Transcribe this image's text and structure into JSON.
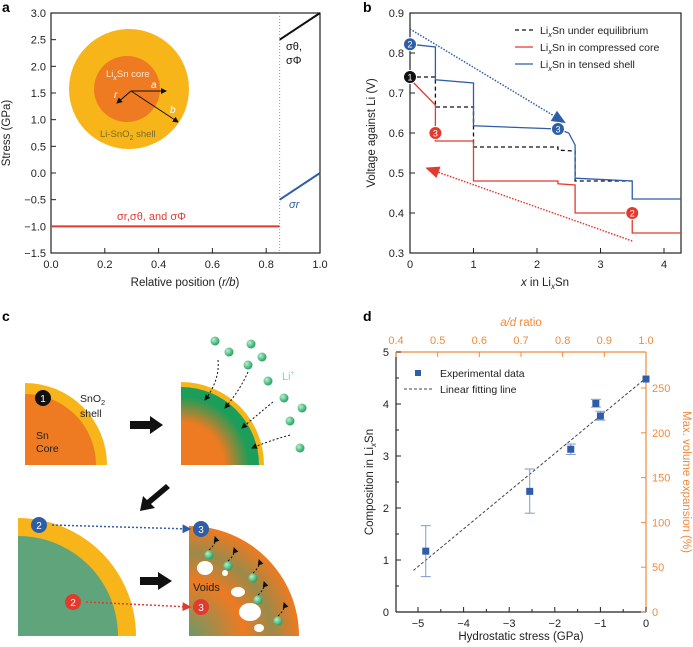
{
  "panel_labels": {
    "a": "a",
    "b": "b",
    "c": "c",
    "d": "d"
  },
  "colors": {
    "core": "#ee7a22",
    "shell": "#f7b519",
    "lithiated": "#1a9e5a",
    "blue": "#2f5ea8",
    "red": "#e23a2f",
    "black": "#111111",
    "axis_orange": "#f08a3c"
  },
  "chart_data": [
    {
      "id": "a",
      "type": "line",
      "xlabel": {
        "pre": "Relative position (",
        "it": "r/b",
        "post": ")"
      },
      "ylabel": "Stress (GPa)",
      "xlim": [
        0,
        1
      ],
      "ylim": [
        -1.5,
        3.0
      ],
      "xticks": [
        "0.0",
        "0.2",
        "0.4",
        "0.6",
        "0.8",
        "1.0"
      ],
      "yticks": [
        "−1.5",
        "−1.0",
        "−0.5",
        "0.0",
        "0.5",
        "1.0",
        "1.5",
        "2.0",
        "2.5",
        "3.0"
      ],
      "interface": 0.85,
      "series": [
        {
          "name": "σr, σθ, and σΦ (core)",
          "color": "#e23a2f",
          "x": [
            0,
            0.85
          ],
          "y": [
            -1.0,
            -1.0
          ]
        },
        {
          "name": "σθ, σΦ (shell)",
          "color": "#111111",
          "x": [
            0.85,
            1.0
          ],
          "y": [
            2.5,
            3.0
          ]
        },
        {
          "name": "σr (shell)",
          "color": "#2f5ea8",
          "x": [
            0.85,
            1.0
          ],
          "y": [
            -0.5,
            0.0
          ]
        }
      ],
      "annotations": {
        "core_label": "σr,σθ, and σΦ",
        "shell_tangential": "σθ,",
        "shell_tangential_2": "σΦ",
        "shell_radial": "σr"
      },
      "inset": {
        "core_pre": "Li",
        "core_sub": "x",
        "core_post": "Sn core",
        "shell_pre": "Li-SnO",
        "shell_sub": "2",
        "shell_post": " shell",
        "a": "a",
        "b": "b",
        "r": "r"
      }
    },
    {
      "id": "b",
      "type": "line",
      "xlabel": {
        "it": "x",
        "pre": " in Li",
        "sub": "x",
        "post": "Sn"
      },
      "ylabel": "Voltage against Li (V)",
      "xlim": [
        0,
        4.27
      ],
      "ylim": [
        0.3,
        0.9
      ],
      "xticks": [
        "0",
        "1",
        "2",
        "3",
        "4"
      ],
      "yticks": [
        "0.3",
        "0.4",
        "0.5",
        "0.6",
        "0.7",
        "0.8",
        "0.9"
      ],
      "series": [
        {
          "name": "LixSn under equilibrium",
          "legend": {
            "pre": "Li",
            "sub": "x",
            "post": "Sn under equilibrium"
          },
          "color": "#111111",
          "dash": true,
          "x": [
            0,
            0.4,
            0.4,
            1,
            1,
            2.33,
            2.33,
            2.6,
            2.6,
            3.5
          ],
          "y": [
            0.74,
            0.74,
            0.665,
            0.665,
            0.565,
            0.565,
            0.557,
            0.555,
            0.48,
            0.48
          ]
        },
        {
          "name": "LixSn in compressed core",
          "legend": {
            "pre": "Li",
            "sub": "x",
            "post": "Sn in compressed core"
          },
          "color": "#e23a2f",
          "dash": false,
          "x": [
            0,
            0.4,
            0.4,
            1,
            1,
            2.33,
            2.33,
            2.6,
            2.6,
            3.5,
            3.5,
            4.27
          ],
          "y": [
            0.735,
            0.67,
            0.58,
            0.58,
            0.48,
            0.48,
            0.473,
            0.47,
            0.4,
            0.4,
            0.35,
            0.35
          ]
        },
        {
          "name": "LixSn in tensed shell",
          "legend": {
            "pre": "Li",
            "sub": "x",
            "post": "Sn in tensed shell"
          },
          "color": "#2f5ea8",
          "dash": false,
          "x": [
            0,
            0.4,
            0.4,
            1,
            1,
            2.33,
            2.5,
            2.6,
            2.6,
            3.5,
            3.5,
            4.27
          ],
          "y": [
            0.822,
            0.815,
            0.733,
            0.725,
            0.618,
            0.61,
            0.6,
            0.57,
            0.487,
            0.48,
            0.435,
            0.435
          ]
        }
      ],
      "markers": [
        {
          "label": "1",
          "x": 0,
          "y": 0.74,
          "color": "#111111"
        },
        {
          "label": "2",
          "x": 0,
          "y": 0.822,
          "color": "#2f5ea8"
        },
        {
          "label": "3",
          "x": 2.33,
          "y": 0.61,
          "color": "#2f5ea8"
        },
        {
          "label": "3",
          "x": 0.4,
          "y": 0.6,
          "color": "#e23a2f"
        },
        {
          "label": "2",
          "x": 3.5,
          "y": 0.4,
          "color": "#e23a2f"
        }
      ],
      "arrows": [
        {
          "color": "#2f5ea8",
          "from": [
            0,
            0.86
          ],
          "to": [
            2.4,
            0.63
          ]
        },
        {
          "color": "#e23a2f",
          "from": [
            3.5,
            0.33
          ],
          "to": [
            0.3,
            0.51
          ]
        }
      ]
    },
    {
      "id": "d",
      "type": "scatter",
      "xlabel": "Hydrostatic stress (GPa)",
      "ylabel": {
        "pre": "Composition in Li",
        "sub": "x",
        "post": "Sn"
      },
      "top_xlabel": {
        "it": "a/d",
        "post": " ratio"
      },
      "right_ylabel": "Max. volume expansion (%)",
      "xlim": [
        -5.5,
        0
      ],
      "ylim": [
        0,
        5
      ],
      "xticks": [
        "−5",
        "−4",
        "−3",
        "−2",
        "−1",
        "0"
      ],
      "xtick_values": [
        -5,
        -4,
        -3,
        -2,
        -1,
        0
      ],
      "yticks": [
        "0",
        "1",
        "2",
        "3",
        "4",
        "5"
      ],
      "top_xticks": [
        "0.4",
        "0.5",
        "0.6",
        "0.7",
        "0.8",
        "0.9",
        "1.0"
      ],
      "top_xtick_values": [
        0.4,
        0.5,
        0.6,
        0.7,
        0.8,
        0.9,
        1.0
      ],
      "right_yticks": [
        "0",
        "50",
        "100",
        "150",
        "200",
        "250"
      ],
      "right_ytick_values": [
        0,
        50,
        100,
        150,
        200,
        250
      ],
      "legend": [
        "Experimental data",
        "Linear fitting line"
      ],
      "points": [
        {
          "x": -4.83,
          "y": 1.17,
          "lo": 0.68,
          "hi": 1.66
        },
        {
          "x": -2.55,
          "y": 2.32,
          "lo": 1.9,
          "hi": 2.75
        },
        {
          "x": -1.65,
          "y": 3.13,
          "lo": 3.03,
          "hi": 3.23
        },
        {
          "x": -1.1,
          "y": 4.01,
          "lo": 3.94,
          "hi": 4.09
        },
        {
          "x": -1.0,
          "y": 3.77,
          "lo": 3.69,
          "hi": 3.86
        },
        {
          "x": 0,
          "y": 4.48,
          "lo": 4.48,
          "hi": 4.48
        }
      ],
      "fit": {
        "x": [
          -5.1,
          0
        ],
        "y": [
          0.8,
          4.5
        ]
      }
    }
  ],
  "diagram_c": {
    "sno2_pre": "SnO",
    "sno2_sub": "2",
    "shell": "shell",
    "sn": "Sn",
    "core": "Core",
    "li_pre": "Li",
    "li_sup": "+",
    "voids": "Voids",
    "m1": "1",
    "m2": "2",
    "m3": "3"
  }
}
